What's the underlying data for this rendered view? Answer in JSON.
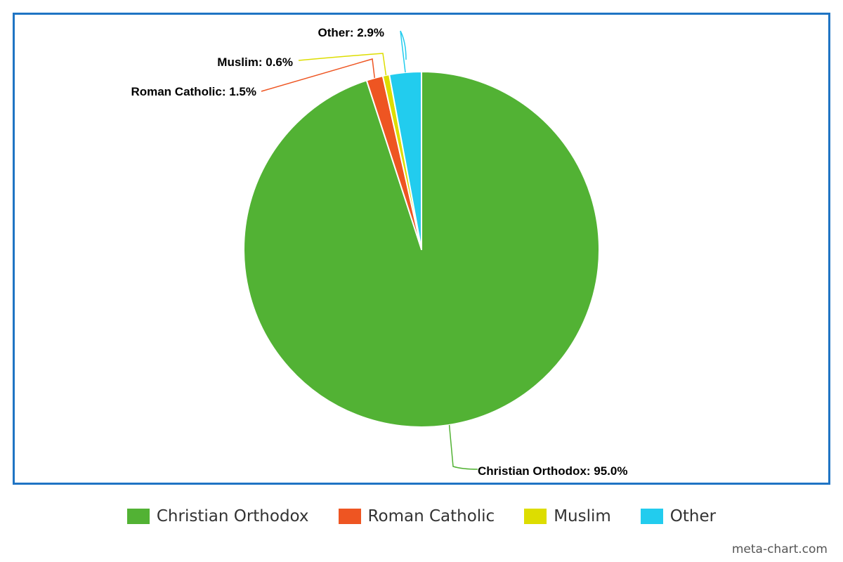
{
  "chart_data": {
    "type": "pie",
    "title": "",
    "series": [
      {
        "name": "Christian Orthodox",
        "value": 95.0,
        "label": "Christian Orthodox: 95.0%",
        "color": "#52b234"
      },
      {
        "name": "Roman Catholic",
        "value": 1.5,
        "label": "Roman Catholic: 1.5%",
        "color": "#ee5522"
      },
      {
        "name": "Muslim",
        "value": 0.6,
        "label": "Muslim: 0.6%",
        "color": "#dddd00"
      },
      {
        "name": "Other",
        "value": 2.9,
        "label": "Other: 2.9%",
        "color": "#22ccee"
      }
    ],
    "legend_position": "bottom-center"
  },
  "legend": {
    "items": [
      {
        "label": "Christian Orthodox",
        "color": "#52b234"
      },
      {
        "label": "Roman Catholic",
        "color": "#ee5522"
      },
      {
        "label": "Muslim",
        "color": "#dddd00"
      },
      {
        "label": "Other",
        "color": "#22ccee"
      }
    ]
  },
  "credit": "meta-chart.com"
}
